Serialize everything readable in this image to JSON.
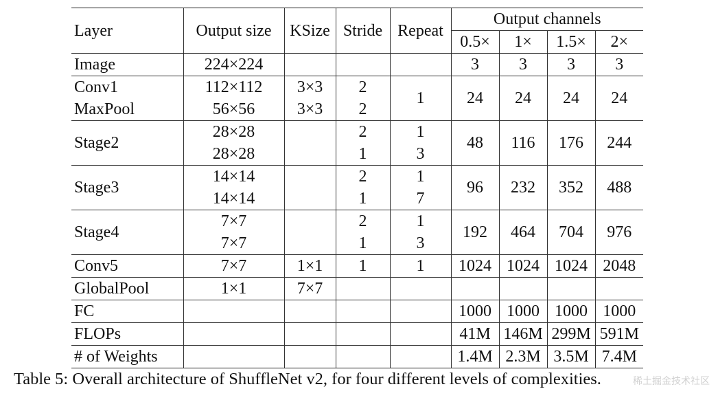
{
  "table": {
    "headers": {
      "layer": "Layer",
      "output_size": "Output size",
      "ksize": "KSize",
      "stride": "Stride",
      "repeat": "Repeat",
      "output_channels": "Output channels",
      "multipliers": [
        "0.5×",
        "1×",
        "1.5×",
        "2×"
      ]
    },
    "rows": {
      "image": {
        "layer": "Image",
        "out": "224×224",
        "ch": [
          "3",
          "3",
          "3",
          "3"
        ]
      },
      "conv1": {
        "layer": "Conv1",
        "out": "112×112",
        "k": "3×3",
        "s": "2"
      },
      "maxpool": {
        "layer": "MaxPool",
        "out": "56×56",
        "k": "3×3",
        "s": "2"
      },
      "conv1_group": {
        "repeat": "1",
        "ch": [
          "24",
          "24",
          "24",
          "24"
        ]
      },
      "stage2": {
        "layer": "Stage2",
        "out": [
          "28×28",
          "28×28"
        ],
        "s": [
          "2",
          "1"
        ],
        "r": [
          "1",
          "3"
        ],
        "ch": [
          "48",
          "116",
          "176",
          "244"
        ]
      },
      "stage3": {
        "layer": "Stage3",
        "out": [
          "14×14",
          "14×14"
        ],
        "s": [
          "2",
          "1"
        ],
        "r": [
          "1",
          "7"
        ],
        "ch": [
          "96",
          "232",
          "352",
          "488"
        ]
      },
      "stage4": {
        "layer": "Stage4",
        "out": [
          "7×7",
          "7×7"
        ],
        "s": [
          "2",
          "1"
        ],
        "r": [
          "1",
          "3"
        ],
        "ch": [
          "192",
          "464",
          "704",
          "976"
        ]
      },
      "conv5": {
        "layer": "Conv5",
        "out": "7×7",
        "k": "1×1",
        "s": "1",
        "r": "1",
        "ch": [
          "1024",
          "1024",
          "1024",
          "2048"
        ]
      },
      "globalpool": {
        "layer": "GlobalPool",
        "out": "1×1",
        "k": "7×7"
      },
      "fc": {
        "layer": "FC",
        "ch": [
          "1000",
          "1000",
          "1000",
          "1000"
        ]
      },
      "flops": {
        "layer": "FLOPs",
        "ch": [
          "41M",
          "146M",
          "299M",
          "591M"
        ]
      },
      "weights": {
        "layer": "# of Weights",
        "ch": [
          "1.4M",
          "2.3M",
          "3.5M",
          "7.4M"
        ]
      }
    }
  },
  "caption": "Table 5: Overall architecture of ShuffleNet v2, for four different levels of complexities.",
  "watermark": "稀土掘金技术社区"
}
